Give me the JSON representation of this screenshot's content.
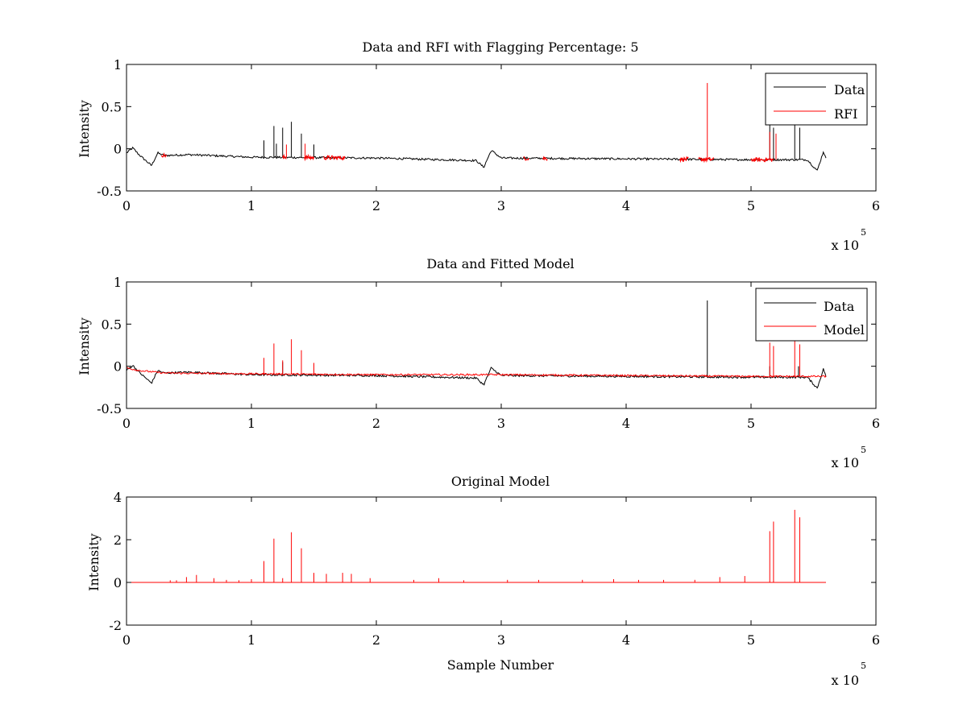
{
  "figure": {
    "background": "#ffffff",
    "colors": {
      "data": "#000000",
      "rfi": "#ff0000",
      "model": "#ff0000",
      "axis": "#000000"
    }
  },
  "chart_data": [
    {
      "type": "line",
      "title": "Data and RFI with Flagging Percentage: 5",
      "xlabel": "",
      "ylabel": "Intensity",
      "xlim": [
        0,
        600000
      ],
      "ylim": [
        -0.5,
        1
      ],
      "xticks": [
        0,
        1,
        2,
        3,
        4,
        5,
        6
      ],
      "yticks": [
        -0.5,
        0,
        0.5,
        1
      ],
      "ytick_labels": [
        "-0.5",
        "0",
        "0.5",
        "1"
      ],
      "x_multiplier": "x 10",
      "x_exponent": "5",
      "legend": {
        "position": "top-right",
        "entries": [
          "Data",
          "RFI"
        ]
      },
      "series": [
        {
          "name": "Data",
          "color": "#000000",
          "baseline": {
            "x": [
              0,
              5000,
              10000,
              20000,
              25000,
              30000,
              50000,
              100000,
              200000,
              280000,
              286000,
              292000,
              300000,
              400000,
              500000,
              545000,
              553000,
              558000,
              560000
            ],
            "y": [
              -0.05,
              0.01,
              -0.07,
              -0.2,
              -0.05,
              -0.08,
              -0.07,
              -0.1,
              -0.11,
              -0.14,
              -0.22,
              -0.02,
              -0.11,
              -0.12,
              -0.13,
              -0.13,
              -0.26,
              -0.03,
              -0.12
            ]
          },
          "spikes": [
            [
              110000,
              0.1
            ],
            [
              118000,
              0.27
            ],
            [
              125000,
              0.25
            ],
            [
              132000,
              0.32
            ],
            [
              140000,
              0.18
            ],
            [
              120000,
              0.06
            ],
            [
              150000,
              0.05
            ],
            [
              515000,
              0.3
            ],
            [
              518000,
              0.25
            ],
            [
              535000,
              0.3
            ],
            [
              539000,
              0.25
            ]
          ]
        },
        {
          "name": "RFI",
          "color": "#ff0000",
          "segments": [
            [
              28000,
              32000
            ],
            [
              125000,
              128000
            ],
            [
              142000,
              150000
            ],
            [
              158000,
              175000
            ],
            [
              318000,
              322000
            ],
            [
              333000,
              337000
            ],
            [
              443000,
              450000
            ],
            [
              458000,
              470000
            ],
            [
              500000,
              518000
            ]
          ],
          "spikes": [
            [
              465000,
              0.78
            ],
            [
              515000,
              0.2
            ],
            [
              520000,
              0.18
            ],
            [
              128000,
              0.05
            ],
            [
              143000,
              0.06
            ]
          ]
        }
      ]
    },
    {
      "type": "line",
      "title": "Data and Fitted Model",
      "xlabel": "",
      "ylabel": "Intensity",
      "xlim": [
        0,
        600000
      ],
      "ylim": [
        -0.5,
        1
      ],
      "xticks": [
        0,
        1,
        2,
        3,
        4,
        5,
        6
      ],
      "yticks": [
        -0.5,
        0,
        0.5,
        1
      ],
      "ytick_labels": [
        "-0.5",
        "0",
        "0.5",
        "1"
      ],
      "x_multiplier": "x 10",
      "x_exponent": "5",
      "legend": {
        "position": "top-right",
        "entries": [
          "Data",
          "Model"
        ]
      },
      "series": [
        {
          "name": "Data",
          "color": "#000000",
          "baseline": {
            "x": [
              0,
              5000,
              10000,
              20000,
              25000,
              30000,
              50000,
              100000,
              200000,
              280000,
              286000,
              292000,
              300000,
              400000,
              500000,
              545000,
              553000,
              558000,
              560000
            ],
            "y": [
              -0.05,
              0.01,
              -0.07,
              -0.2,
              -0.05,
              -0.08,
              -0.07,
              -0.1,
              -0.11,
              -0.14,
              -0.22,
              -0.02,
              -0.11,
              -0.12,
              -0.13,
              -0.13,
              -0.26,
              -0.03,
              -0.12
            ]
          },
          "spikes": [
            [
              465000,
              0.78
            ],
            [
              110000,
              0.03
            ],
            [
              125000,
              0.05
            ],
            [
              140000,
              0.02
            ],
            [
              515000,
              0.0
            ],
            [
              538000,
              0.0
            ]
          ]
        },
        {
          "name": "Model",
          "color": "#ff0000",
          "baseline": {
            "x": [
              0,
              10000,
              30000,
              100000,
              200000,
              300000,
              400000,
              500000,
              560000
            ],
            "y": [
              -0.02,
              -0.05,
              -0.08,
              -0.09,
              -0.1,
              -0.1,
              -0.11,
              -0.12,
              -0.12
            ]
          },
          "spikes": [
            [
              110000,
              0.1
            ],
            [
              118000,
              0.27
            ],
            [
              125000,
              0.07
            ],
            [
              132000,
              0.32
            ],
            [
              140000,
              0.19
            ],
            [
              150000,
              0.04
            ],
            [
              515000,
              0.28
            ],
            [
              518000,
              0.24
            ],
            [
              535000,
              0.32
            ],
            [
              539000,
              0.26
            ]
          ]
        }
      ]
    },
    {
      "type": "line",
      "title": "Original Model",
      "xlabel": "Sample Number",
      "ylabel": "Intensity",
      "xlim": [
        0,
        600000
      ],
      "ylim": [
        -2,
        4
      ],
      "xticks": [
        0,
        1,
        2,
        3,
        4,
        5,
        6
      ],
      "yticks": [
        -2,
        0,
        2,
        4
      ],
      "ytick_labels": [
        "-2",
        "0",
        "2",
        "4"
      ],
      "x_multiplier": "x 10",
      "x_exponent": "5",
      "series": [
        {
          "name": "Model",
          "color": "#ff0000",
          "baseline": {
            "x": [
              0,
              560000
            ],
            "y": [
              0,
              0
            ]
          },
          "spikes": [
            [
              35000,
              0.1
            ],
            [
              40000,
              0.1
            ],
            [
              48000,
              0.25
            ],
            [
              56000,
              0.35
            ],
            [
              70000,
              0.2
            ],
            [
              80000,
              0.12
            ],
            [
              90000,
              0.1
            ],
            [
              100000,
              0.15
            ],
            [
              110000,
              1.0
            ],
            [
              118000,
              2.05
            ],
            [
              125000,
              0.2
            ],
            [
              132000,
              2.35
            ],
            [
              140000,
              1.6
            ],
            [
              150000,
              0.45
            ],
            [
              160000,
              0.4
            ],
            [
              173000,
              0.45
            ],
            [
              180000,
              0.4
            ],
            [
              195000,
              0.2
            ],
            [
              230000,
              0.12
            ],
            [
              250000,
              0.2
            ],
            [
              270000,
              0.1
            ],
            [
              305000,
              0.12
            ],
            [
              330000,
              0.12
            ],
            [
              365000,
              0.12
            ],
            [
              390000,
              0.15
            ],
            [
              410000,
              0.12
            ],
            [
              430000,
              0.12
            ],
            [
              455000,
              0.12
            ],
            [
              475000,
              0.25
            ],
            [
              495000,
              0.3
            ],
            [
              515000,
              2.4
            ],
            [
              518000,
              2.85
            ],
            [
              535000,
              3.4
            ],
            [
              539000,
              3.05
            ]
          ]
        }
      ]
    }
  ]
}
